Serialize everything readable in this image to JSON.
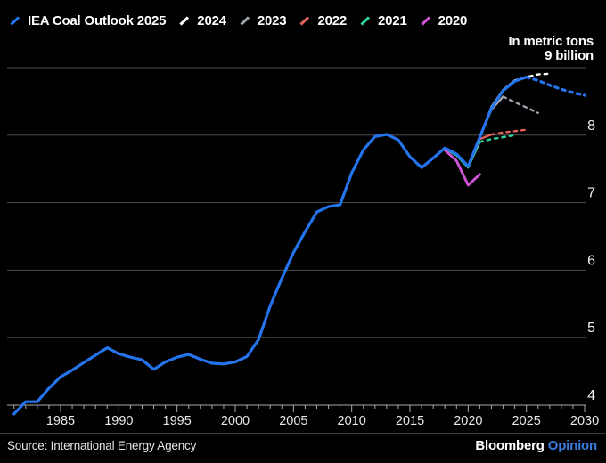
{
  "header": {
    "legend": [
      {
        "label": "IEA Coal Outlook 2025",
        "color": "#2474ed"
      },
      {
        "label": "2024",
        "color": "#ffffff"
      },
      {
        "label": "2023",
        "color": "#9ca4ad"
      },
      {
        "label": "2022",
        "color": "#e2635c"
      },
      {
        "label": "2021",
        "color": "#2fd2a0"
      },
      {
        "label": "2020",
        "color": "#cf53d6"
      }
    ],
    "unit_line1": "In metric tons",
    "unit_line2": "9 billion"
  },
  "chart_data": {
    "type": "line",
    "title": "IEA Coal Outlook projections vs actual global coal demand",
    "xlabel": "",
    "ylabel": "metric tons (billions)",
    "xlim": [
      1980.5,
      2030.5
    ],
    "ylim": [
      3.8,
      9.2
    ],
    "grid": "horizontal",
    "legend_position": "top-left",
    "gridline_values": [
      4,
      5,
      6,
      7,
      8,
      9
    ],
    "y_axis_labels": [
      "8",
      "7",
      "6",
      "5",
      "4"
    ],
    "xticks": [
      1985,
      1990,
      1995,
      2000,
      2005,
      2010,
      2015,
      2020,
      2025,
      2030
    ],
    "minor_tick_range": [
      1981,
      2030
    ],
    "series": [
      {
        "name": "2023",
        "color": "#9ca4ad",
        "solid": {
          "start_year": 2021,
          "values": [
            7.97,
            8.38,
            8.57
          ]
        },
        "dotted": {
          "start_year": 2023,
          "values": [
            8.57,
            8.49,
            8.41,
            8.33
          ]
        }
      },
      {
        "name": "2024",
        "color": "#ffffff",
        "solid": {
          "start_year": 2021,
          "values": [
            7.96,
            8.42,
            8.67,
            8.81
          ]
        },
        "dotted": {
          "start_year": 2024,
          "values": [
            8.81,
            8.86,
            8.9,
            8.91
          ]
        }
      },
      {
        "name": "2021",
        "color": "#2fd2a0",
        "solid": {
          "start_year": 2018,
          "values": [
            7.8,
            7.7,
            7.52,
            7.9
          ]
        },
        "dotted": {
          "start_year": 2021,
          "values": [
            7.9,
            7.94,
            7.97,
            8.0
          ]
        }
      },
      {
        "name": "2020",
        "color": "#cf53d6",
        "solid": {
          "start_year": 2018,
          "values": [
            7.78,
            7.62,
            7.26,
            7.42
          ]
        }
      },
      {
        "name": "2022",
        "color": "#e2635c",
        "solid": {
          "start_year": 2020,
          "values": [
            7.53,
            7.94,
            8.01
          ]
        },
        "dotted": {
          "start_year": 2022,
          "values": [
            8.01,
            8.04,
            8.06,
            8.08
          ]
        }
      },
      {
        "name": "IEA Coal Outlook 2025",
        "color": "#2474ed",
        "solid": {
          "start_year": 1981,
          "values": [
            3.87,
            4.05,
            4.05,
            4.25,
            4.42,
            4.52,
            4.63,
            4.74,
            4.85,
            4.76,
            4.71,
            4.67,
            4.53,
            4.64,
            4.71,
            4.75,
            4.68,
            4.62,
            4.61,
            4.64,
            4.72,
            4.97,
            5.47,
            5.88,
            6.26,
            6.57,
            6.86,
            6.94,
            6.97,
            7.44,
            7.78,
            7.98,
            8.01,
            7.93,
            7.68,
            7.52,
            7.66,
            7.81,
            7.72,
            7.54,
            7.97,
            8.4,
            8.66,
            8.8,
            8.86
          ]
        },
        "dotted": {
          "start_year": 2025,
          "values": [
            8.86,
            8.81,
            8.74,
            8.68,
            8.63,
            8.59
          ]
        }
      }
    ]
  },
  "footer": {
    "source": "Source: International Energy Agency",
    "brand": "Bloomberg",
    "brand_suffix": "Opinion"
  },
  "colors": {
    "background": "#000000",
    "gridline": "#4e4e4e",
    "axis": "#a8a8a8",
    "tick_label": "#e8e8e8",
    "opinion_blue": "#3a7bdc"
  }
}
